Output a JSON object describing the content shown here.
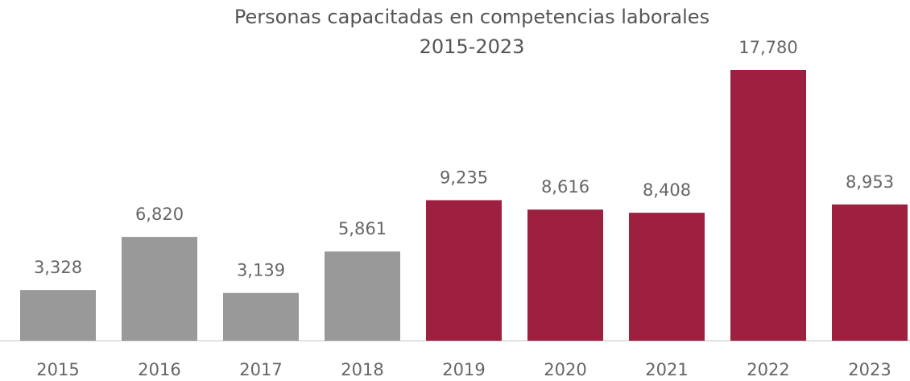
{
  "chart_data": {
    "type": "bar",
    "title": "Personas capacitadas en competencias laborales",
    "subtitle": "2015-2023",
    "categories": [
      "2015",
      "2016",
      "2017",
      "2018",
      "2019",
      "2020",
      "2021",
      "2022",
      "2023"
    ],
    "values": [
      3328,
      6820,
      3139,
      5861,
      9235,
      8616,
      8408,
      17780,
      8953
    ],
    "value_labels": [
      "3,328",
      "6,820",
      "3,139",
      "5,861",
      "9,235",
      "8,616",
      "8,408",
      "17,780",
      "8,953"
    ],
    "colors": [
      "#999999",
      "#999999",
      "#999999",
      "#999999",
      "#9e2040",
      "#9e2040",
      "#9e2040",
      "#9e2040",
      "#9e2040"
    ]
  }
}
